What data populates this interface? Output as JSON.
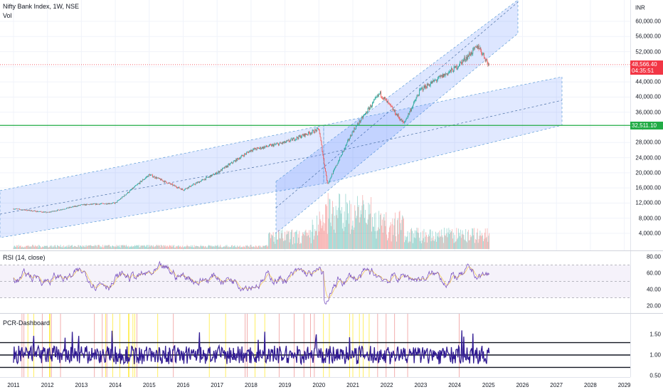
{
  "main_legend": {
    "title": "Nifty Bank Index, 1W, NSE",
    "sub": "Vol"
  },
  "currency": "INR",
  "price_axis": [
    "60,000.00",
    "56,000.00",
    "52,000.00",
    "48,000.00",
    "44,000.00",
    "40,000.00",
    "36,000.00",
    "32,000.00",
    "28,000.00",
    "24,000.00",
    "20,000.00",
    "16,000.00",
    "12,000.00",
    "8,000.00",
    "4,000.00"
  ],
  "last_price": {
    "value": "48,566.40",
    "countdown": "04:35:51",
    "color": "#f23645"
  },
  "level_line": {
    "value": "32,511.10",
    "color": "#22ab46"
  },
  "rsi": {
    "title": "RSI (14, close)",
    "axis": [
      "80.00",
      "60.00",
      "40.00",
      "20.00"
    ],
    "color": "#7e57c2"
  },
  "pcr": {
    "title": "PCR-Dashboard",
    "axis": [
      "1.50",
      "1.00",
      "0.50"
    ],
    "color": "#311b92"
  },
  "time_axis": [
    "2011",
    "2012",
    "2013",
    "2014",
    "2015",
    "2016",
    "2017",
    "2018",
    "2019",
    "2020",
    "2021",
    "2022",
    "2023",
    "2024",
    "2025",
    "2026",
    "2027",
    "2028",
    "2029"
  ],
  "colors": {
    "up": "#26a69a",
    "down": "#ef5350",
    "channel_fill": "#2962ff",
    "grid": "#f0f3fa"
  },
  "chart_data": {
    "type": "candlestick",
    "title": "Nifty Bank Index, 1W, NSE",
    "price_weekly_approx": [
      {
        "year": 2011,
        "price": 10500
      },
      {
        "year": 2012,
        "price": 9500
      },
      {
        "year": 2013,
        "price": 11500
      },
      {
        "year": 2014,
        "price": 12000
      },
      {
        "year": 2015,
        "price": 19500
      },
      {
        "year": 2016,
        "price": 15500
      },
      {
        "year": 2017,
        "price": 20000
      },
      {
        "year": 2018,
        "price": 26000
      },
      {
        "year": 2019,
        "price": 28000
      },
      {
        "year": 2020,
        "price": 31500
      },
      {
        "year": 2020.25,
        "price": 17000
      },
      {
        "year": 2021,
        "price": 31000
      },
      {
        "year": 2021.8,
        "price": 41000
      },
      {
        "year": 2022.5,
        "price": 33000
      },
      {
        "year": 2023,
        "price": 42000
      },
      {
        "year": 2024,
        "price": 47500
      },
      {
        "year": 2024.7,
        "price": 53500
      },
      {
        "year": 2025,
        "price": 48566.4
      }
    ],
    "ylim": [
      2000,
      64000
    ]
  }
}
